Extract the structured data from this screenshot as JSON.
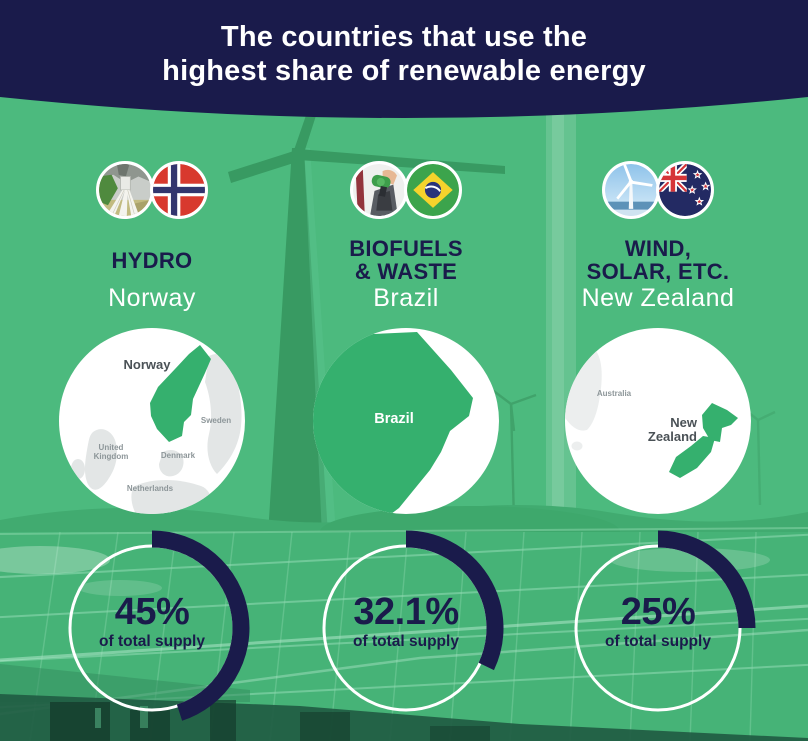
{
  "header": {
    "title_lines": [
      "The countries that use the",
      "highest share of renewable energy"
    ]
  },
  "columns": [
    {
      "category_lines": [
        "HYDRO"
      ],
      "country": "Norway",
      "icons": {
        "photo": "hydro-dam-photo-icon",
        "flag": "norway-flag-icon"
      },
      "share_label": "45%",
      "share_value": 45,
      "share_caption": "of total supply",
      "map": {
        "norway": "Norway",
        "sweden": "Sweden",
        "united": "United",
        "kingdom": "Kingdom",
        "denmark": "Denmark",
        "netherlands": "Netherlands"
      }
    },
    {
      "category_lines": [
        "BIOFUELS",
        "& WASTE"
      ],
      "country": "Brazil",
      "icons": {
        "photo": "biofuel-pump-photo-icon",
        "flag": "brazil-flag-icon"
      },
      "share_label": "32.1%",
      "share_value": 32.1,
      "share_caption": "of total supply",
      "map": {
        "brazil": "Brazil"
      }
    },
    {
      "category_lines": [
        "WIND,",
        "SOLAR, ETC."
      ],
      "country": "New Zealand",
      "icons": {
        "photo": "wind-turbine-photo-icon",
        "flag": "new-zealand-flag-icon"
      },
      "share_label": "25%",
      "share_value": 25,
      "share_caption": "of total supply",
      "map": {
        "australia": "Australia",
        "new": "New",
        "zealand": "Zealand"
      }
    }
  ],
  "colors": {
    "navy": "#1a1b4b",
    "background_green": "#4cba7e",
    "map_highlight_green": "#35b06e",
    "land_gray": "#e3e6e6",
    "map_label_gray": "#8d9699",
    "white": "#ffffff"
  },
  "chart_data": {
    "type": "pie",
    "subtype": "donut-gauges",
    "title": "The countries that use the highest share of renewable energy",
    "categories": [
      "HYDRO — Norway",
      "BIOFUELS & WASTE — Brazil",
      "WIND, SOLAR, ETC. — New Zealand"
    ],
    "values": [
      45,
      32.1,
      25
    ],
    "unit": "% of total supply",
    "labels": [
      "45% of total supply",
      "32.1% of total supply",
      "25% of total supply"
    ],
    "gauge_start_angle_deg": 0,
    "gauge_direction": "clockwise",
    "arc_color": "#1a1b4b",
    "ring_color": "#ffffff"
  }
}
